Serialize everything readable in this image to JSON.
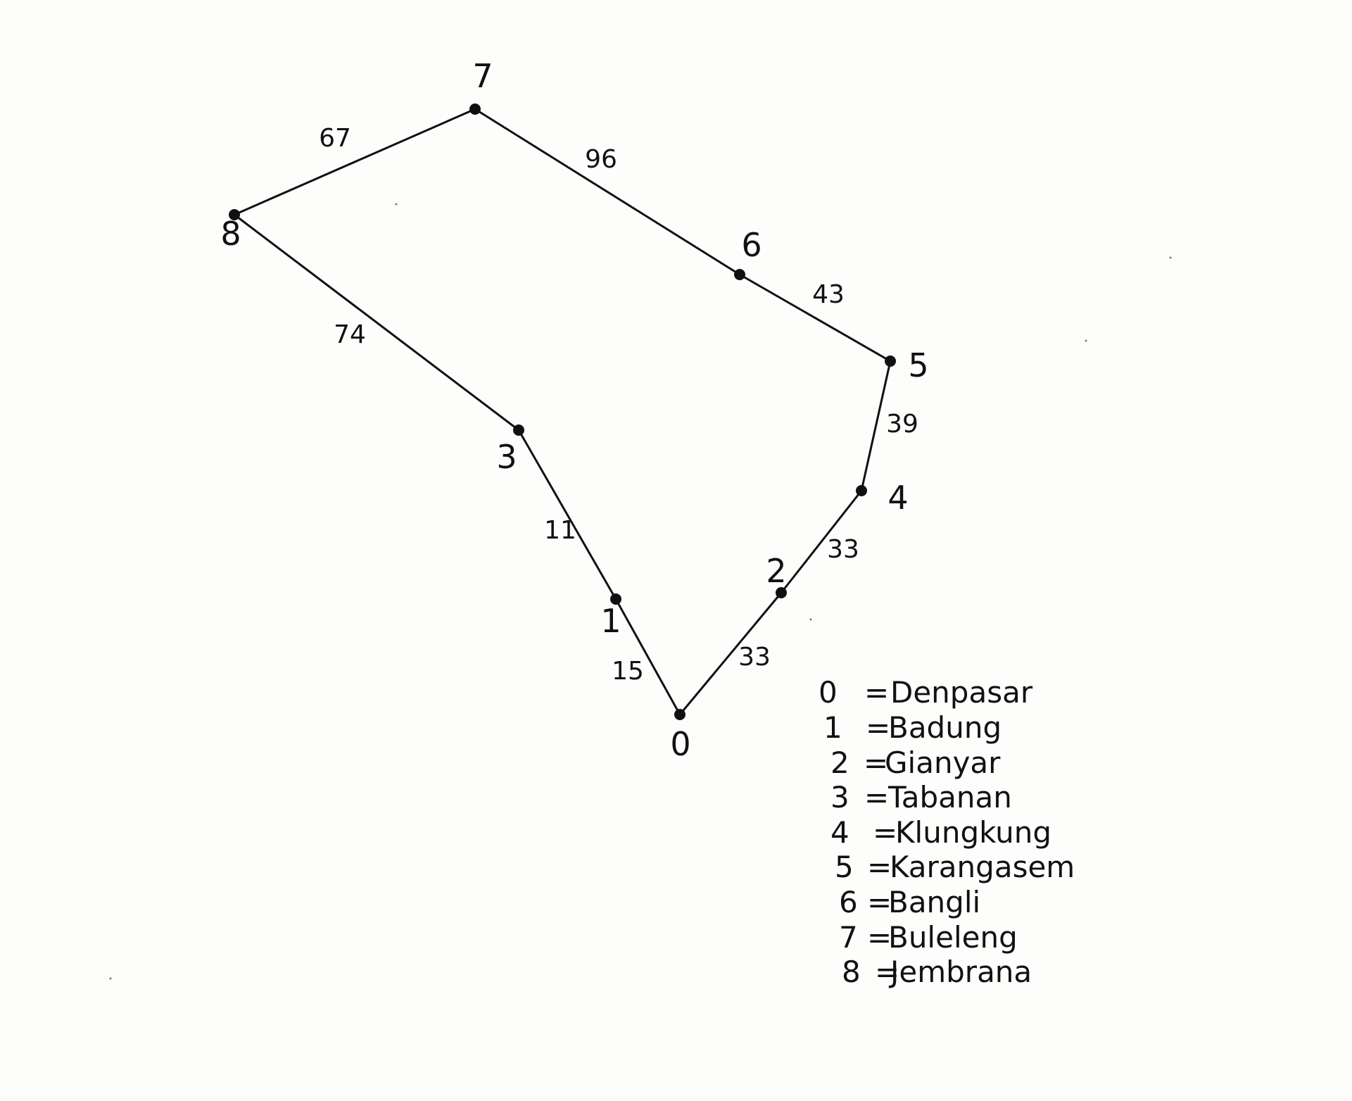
{
  "graph": {
    "nodes": [
      {
        "id": "0",
        "label": "0"
      },
      {
        "id": "1",
        "label": "1"
      },
      {
        "id": "2",
        "label": "2"
      },
      {
        "id": "3",
        "label": "3"
      },
      {
        "id": "4",
        "label": "4"
      },
      {
        "id": "5",
        "label": "5"
      },
      {
        "id": "6",
        "label": "6"
      },
      {
        "id": "7",
        "label": "7"
      },
      {
        "id": "8",
        "label": "8"
      }
    ],
    "edges": [
      {
        "from": "0",
        "to": "1",
        "weight": "15"
      },
      {
        "from": "1",
        "to": "3",
        "weight": "11"
      },
      {
        "from": "3",
        "to": "8",
        "weight": "74"
      },
      {
        "from": "8",
        "to": "7",
        "weight": "67"
      },
      {
        "from": "7",
        "to": "6",
        "weight": "96"
      },
      {
        "from": "6",
        "to": "5",
        "weight": "43"
      },
      {
        "from": "5",
        "to": "4",
        "weight": "39"
      },
      {
        "from": "4",
        "to": "2",
        "weight": "33"
      },
      {
        "from": "2",
        "to": "0",
        "weight": "33"
      }
    ]
  },
  "legend": [
    {
      "num": "0",
      "eq": "=",
      "name": "Denpasar"
    },
    {
      "num": "1",
      "eq": "=",
      "name": "Badung"
    },
    {
      "num": "2",
      "eq": "=",
      "name": "Gianyar"
    },
    {
      "num": "3",
      "eq": "=",
      "name": "Tabanan"
    },
    {
      "num": "4",
      "eq": "=",
      "name": "Klungkung"
    },
    {
      "num": "5",
      "eq": "=",
      "name": "Karangasem"
    },
    {
      "num": "6",
      "eq": "=",
      "name": "Bangli"
    },
    {
      "num": "7",
      "eq": "=",
      "name": "Buleleng"
    },
    {
      "num": "8",
      "eq": "=",
      "name": "Jembrana"
    }
  ],
  "colors": {
    "ink": "#111111",
    "paper": "#fdfdfc"
  }
}
